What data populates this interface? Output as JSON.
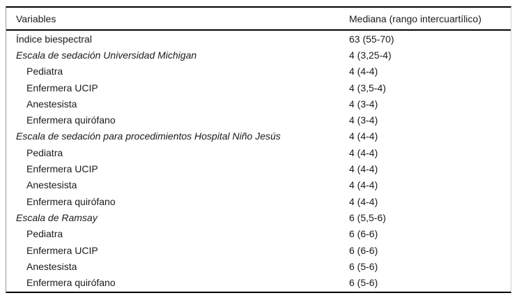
{
  "table": {
    "columns": [
      "Variables",
      "Mediana (rango intercuartílico)"
    ],
    "rows": [
      {
        "label": "Índice biespectral",
        "value": "63 (55-70)",
        "style": "normal"
      },
      {
        "label": "Escala de sedación Universidad Michigan",
        "value": "4 (3,25-4)",
        "style": "section"
      },
      {
        "label": "Pediatra",
        "value": "4 (4-4)",
        "style": "indent"
      },
      {
        "label": "Enfermera UCIP",
        "value": "4 (3,5-4)",
        "style": "indent"
      },
      {
        "label": "Anestesista",
        "value": "4 (3-4)",
        "style": "indent"
      },
      {
        "label": "Enfermera quirófano",
        "value": "4 (3-4)",
        "style": "indent"
      },
      {
        "label": "Escala de sedación para procedimientos Hospital Niño Jesús",
        "value": "4 (4-4)",
        "style": "section"
      },
      {
        "label": "Pediatra",
        "value": "4 (4-4)",
        "style": "indent"
      },
      {
        "label": "Enfermera UCIP",
        "value": "4 (4-4)",
        "style": "indent"
      },
      {
        "label": "Anestesista",
        "value": "4 (4-4)",
        "style": "indent"
      },
      {
        "label": "Enfermera quirófano",
        "value": "4 (4-4)",
        "style": "indent"
      },
      {
        "label": "Escala de Ramsay",
        "value": "6 (5,5-6)",
        "style": "section"
      },
      {
        "label": "Pediatra",
        "value": "6 (6-6)",
        "style": "indent"
      },
      {
        "label": "Enfermera UCIP",
        "value": "6 (6-6)",
        "style": "indent"
      },
      {
        "label": "Anestesista",
        "value": "6 (5-6)",
        "style": "indent"
      },
      {
        "label": "Enfermera quirófano",
        "value": "6 (5-6)",
        "style": "indent"
      }
    ],
    "colors": {
      "rule": "#000000",
      "side_border_left": "#9a9a9a",
      "side_border_right": "#cfcfcf",
      "text": "#1a1a1a",
      "background": "#ffffff"
    }
  },
  "chart_data": {
    "type": "table",
    "columns": [
      "Variables",
      "Mediana (rango intercuartílico)"
    ],
    "rows": [
      [
        "Índice biespectral",
        "63 (55-70)"
      ],
      [
        "Escala de sedación Universidad Michigan",
        "4 (3,25-4)"
      ],
      [
        "Pediatra",
        "4 (4-4)"
      ],
      [
        "Enfermera UCIP",
        "4 (3,5-4)"
      ],
      [
        "Anestesista",
        "4 (3-4)"
      ],
      [
        "Enfermera quirófano",
        "4 (3-4)"
      ],
      [
        "Escala de sedación para procedimientos Hospital Niño Jesús",
        "4 (4-4)"
      ],
      [
        "Pediatra",
        "4 (4-4)"
      ],
      [
        "Enfermera UCIP",
        "4 (4-4)"
      ],
      [
        "Anestesista",
        "4 (4-4)"
      ],
      [
        "Enfermera quirófano",
        "4 (4-4)"
      ],
      [
        "Escala de Ramsay",
        "6 (5,5-6)"
      ],
      [
        "Pediatra",
        "6 (6-6)"
      ],
      [
        "Enfermera UCIP",
        "6 (6-6)"
      ],
      [
        "Anestesista",
        "6 (5-6)"
      ],
      [
        "Enfermera quirófano",
        "6 (5-6)"
      ]
    ]
  }
}
